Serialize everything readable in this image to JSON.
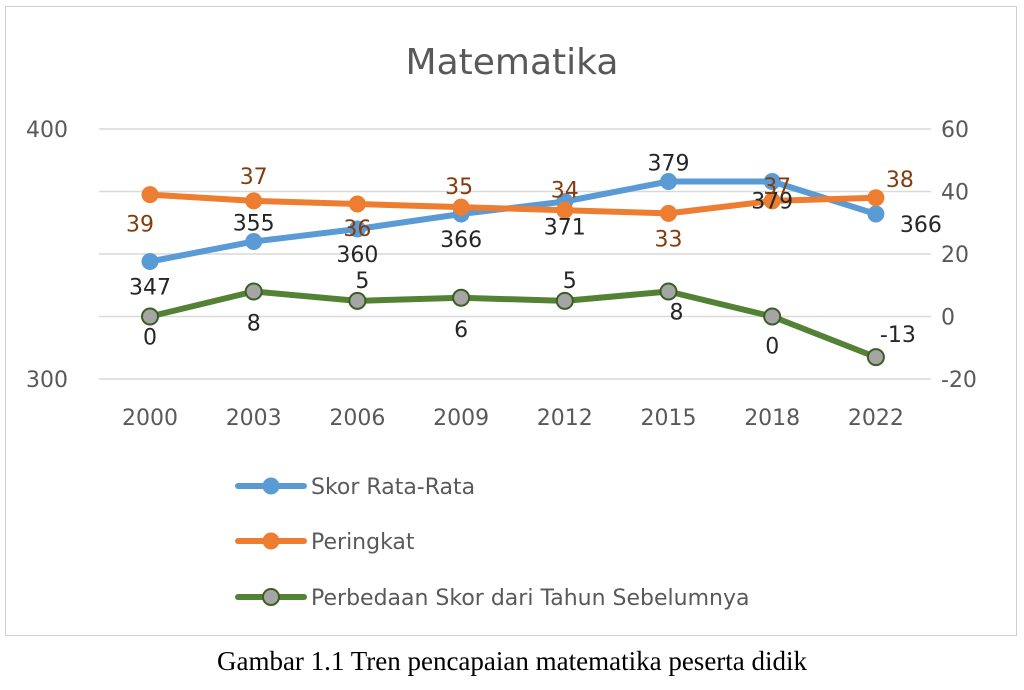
{
  "chart_data": {
    "type": "line",
    "title": "Matematika",
    "categories": [
      "2000",
      "2003",
      "2006",
      "2009",
      "2012",
      "2015",
      "2018",
      "2022"
    ],
    "left_axis": {
      "ylim": [
        300,
        400
      ],
      "ticks": [
        "300",
        "400"
      ]
    },
    "right_axis": {
      "ylim": [
        -20,
        60
      ],
      "ticks": [
        "-20",
        "0",
        "20",
        "40",
        "60"
      ]
    },
    "grid": true,
    "legend_position": "bottom",
    "series": [
      {
        "name": "Skor Rata-Rata",
        "axis": "left",
        "color": "#5b9bd5",
        "values": [
          347,
          355,
          360,
          366,
          371,
          379,
          379,
          366
        ]
      },
      {
        "name": "Peringkat",
        "axis": "right",
        "color": "#ed7d31",
        "label_color": "#843c0c",
        "values": [
          39,
          37,
          36,
          35,
          34,
          33,
          37,
          38
        ]
      },
      {
        "name": "Perbedaan Skor dari Tahun Sebelumnya",
        "axis": "right",
        "color": "#548235",
        "marker_fill": "#a5a5a5",
        "values": [
          0,
          8,
          5,
          6,
          5,
          8,
          0,
          -13
        ]
      }
    ]
  },
  "caption": "Gambar 1.1 Tren pencapaian matematika peserta didik"
}
